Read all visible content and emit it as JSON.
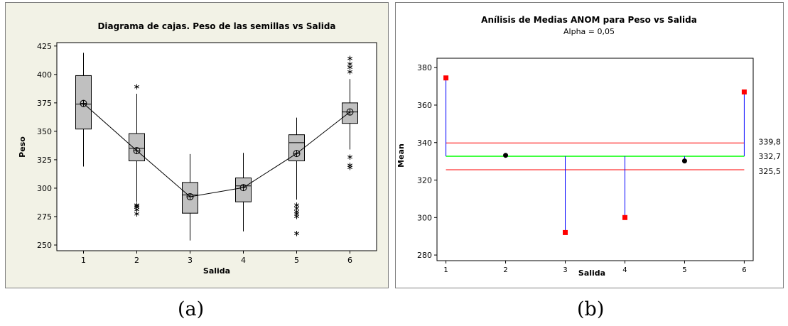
{
  "charts": {
    "a": {
      "title": "Diagrama de cajas. Peso de las semillas vs Salida",
      "xlabel": "Salida",
      "ylabel": "Peso",
      "yticks": [
        "250",
        "275",
        "300",
        "325",
        "350",
        "375",
        "400",
        "425"
      ],
      "xticks": [
        "1",
        "2",
        "3",
        "4",
        "5",
        "6"
      ]
    },
    "b": {
      "title": "Anílisis de Medias ANOM para  Peso vs  Salida",
      "subtitle": "Alpha = 0,05",
      "xlabel": "Salida",
      "ylabel": "Mean",
      "yticks": [
        "280",
        "300",
        "320",
        "340",
        "360",
        "380"
      ],
      "xticks": [
        "1",
        "2",
        "3",
        "4",
        "5",
        "6"
      ],
      "line_labels": [
        "339,8",
        "332,7",
        "325,5"
      ]
    }
  },
  "captions": {
    "a": "(a)",
    "b": "(b)"
  },
  "colors": {
    "panel_a_bg": "#f2f2e6",
    "box_fill": "#c0c0c0",
    "out_of_limits": "#ff0000",
    "in_limits": "#000000",
    "center_line": "#00ff00",
    "limit_line": "#ff0000",
    "stem": "#0000ff"
  },
  "chart_data": [
    {
      "type": "box",
      "title": "Diagrama de cajas. Peso de las semillas vs Salida",
      "xlabel": "Salida",
      "ylabel": "Peso",
      "ylim": [
        245,
        428
      ],
      "xlim": [
        0.5,
        6.5
      ],
      "categories": [
        "1",
        "2",
        "3",
        "4",
        "5",
        "6"
      ],
      "boxes": [
        {
          "x": 1,
          "whisker_low": 319,
          "q1": 352,
          "median": 374,
          "q3": 399,
          "whisker_high": 419,
          "mean": 374.5,
          "outliers": []
        },
        {
          "x": 2,
          "whisker_low": 288,
          "q1": 324,
          "median": 335,
          "q3": 348,
          "whisker_high": 383,
          "mean": 333,
          "outliers": [
            278,
            282,
            284,
            285,
            286,
            390
          ]
        },
        {
          "x": 3,
          "whisker_low": 254,
          "q1": 278,
          "median": 294,
          "q3": 305,
          "whisker_high": 330,
          "mean": 292.5,
          "outliers": []
        },
        {
          "x": 4,
          "whisker_low": 262,
          "q1": 288,
          "median": 302,
          "q3": 309,
          "whisker_high": 331,
          "mean": 300.5,
          "outliers": []
        },
        {
          "x": 5,
          "whisker_low": 290,
          "q1": 324,
          "median": 340,
          "q3": 347,
          "whisker_high": 362,
          "mean": 330.5,
          "outliers": [
            261,
            276,
            278,
            280,
            283,
            286
          ]
        },
        {
          "x": 6,
          "whisker_low": 334,
          "q1": 357,
          "median": 367,
          "q3": 375,
          "whisker_high": 396,
          "mean": 367,
          "outliers": [
            319,
            321,
            328,
            403,
            407,
            410,
            415
          ]
        }
      ],
      "mean_line": true
    },
    {
      "type": "anom",
      "title": "Anílisis de Medias ANOM para  Peso vs  Salida",
      "subtitle": "Alpha = 0,05",
      "xlabel": "Salida",
      "ylabel": "Mean",
      "ylim": [
        277,
        385
      ],
      "xlim": [
        0.85,
        6.15
      ],
      "categories": [
        "1",
        "2",
        "3",
        "4",
        "5",
        "6"
      ],
      "means": [
        374.5,
        333.2,
        292,
        300,
        330.2,
        367
      ],
      "center": 332.7,
      "udl": 339.8,
      "ldl": 325.5
    }
  ]
}
